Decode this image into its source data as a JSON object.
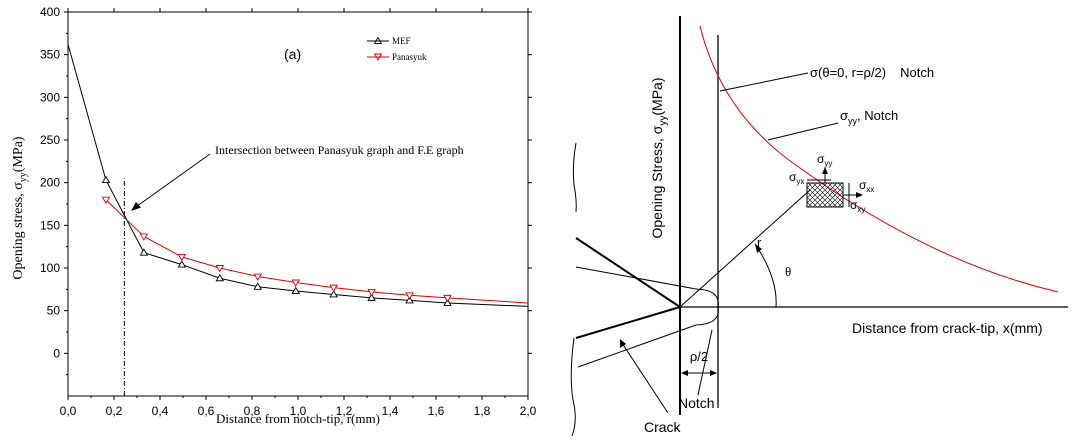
{
  "chart_data": [
    {
      "type": "line",
      "annotation_label": "(a)",
      "xlabel": "Distance from notch-tip, r(mm)",
      "ylabel_main": "Opening stress, σ",
      "ylabel_sub": "yy",
      "ylabel_unit": "(MPa)",
      "xlim": [
        0,
        2.0
      ],
      "ylim": [
        -50,
        400
      ],
      "xticks": [
        0.0,
        0.2,
        0.4,
        0.6,
        0.8,
        1.0,
        1.2,
        1.4,
        1.6,
        1.8,
        2.0
      ],
      "xtick_labels": [
        "0,0",
        "0,2",
        "0,4",
        "0,6",
        "0,8",
        "1,0",
        "1,2",
        "1,4",
        "1,6",
        "1,8",
        "2,0"
      ],
      "yticks": [
        0,
        50,
        100,
        150,
        200,
        250,
        300,
        350,
        400
      ],
      "ytick_labels": [
        "0",
        "50",
        "100",
        "150",
        "200",
        "250",
        "300",
        "350",
        "400"
      ],
      "legend_position": "top-right",
      "series": [
        {
          "name": "MEF",
          "color": "#000000",
          "marker": "triangle-up",
          "points": [
            [
              0.0,
              362
            ],
            [
              0.165,
              203
            ],
            [
              0.33,
              118
            ],
            [
              0.495,
              104
            ],
            [
              0.66,
              88
            ],
            [
              0.825,
              78
            ],
            [
              0.99,
              73
            ],
            [
              1.155,
              69
            ],
            [
              1.32,
              65
            ],
            [
              1.485,
              62
            ],
            [
              1.65,
              59
            ],
            [
              2.0,
              55
            ]
          ],
          "marker_points": [
            [
              0.165,
              203
            ],
            [
              0.33,
              118
            ],
            [
              0.495,
              104
            ],
            [
              0.66,
              88
            ],
            [
              0.825,
              78
            ],
            [
              0.99,
              73
            ],
            [
              1.155,
              69
            ],
            [
              1.32,
              65
            ],
            [
              1.485,
              62
            ],
            [
              1.65,
              59
            ]
          ]
        },
        {
          "name": "Panasyuk",
          "color": "#e00000",
          "marker": "triangle-down",
          "points": [
            [
              0.165,
              180
            ],
            [
              0.33,
              137
            ],
            [
              0.495,
              113
            ],
            [
              0.66,
              100
            ],
            [
              0.825,
              90
            ],
            [
              0.99,
              83
            ],
            [
              1.155,
              77
            ],
            [
              1.32,
              72
            ],
            [
              1.485,
              68
            ],
            [
              1.65,
              65
            ],
            [
              2.0,
              59
            ]
          ],
          "marker_points": [
            [
              0.165,
              180
            ],
            [
              0.33,
              137
            ],
            [
              0.495,
              113
            ],
            [
              0.66,
              100
            ],
            [
              0.825,
              90
            ],
            [
              0.99,
              83
            ],
            [
              1.155,
              77
            ],
            [
              1.32,
              72
            ],
            [
              1.485,
              68
            ],
            [
              1.65,
              65
            ]
          ]
        }
      ],
      "intersection_x": 0.245,
      "intersection_annotation": "Intersection between Panasyuk graph and F.E graph"
    }
  ],
  "diagram": {
    "ylabel_main": "Opening Stress, σ",
    "ylabel_sub": "yy",
    "ylabel_unit": "(MPa)",
    "xlabel": "Distance from crack-tip, x(mm)",
    "point_label_main": "σ(θ=0, r=ρ/2)",
    "point_label_notch": "Notch",
    "curve_label_main": "σ",
    "curve_label_sub": "yy",
    "curve_label_rest": ",  Notch",
    "sigma_yy_main": "σ",
    "sigma_yy_sub": "yy",
    "sigma_yx_main": "σ",
    "sigma_yx_sub": "yx",
    "sigma_xx_main": "σ",
    "sigma_xx_sub": "xx",
    "sigma_xy_main": "σ",
    "sigma_xy_sub": "xy",
    "r_label": "r",
    "theta_label": "θ",
    "rho_label": "ρ/2",
    "notch_label": "Notch",
    "crack_label": "Crack",
    "curve_color": "#e00000"
  }
}
